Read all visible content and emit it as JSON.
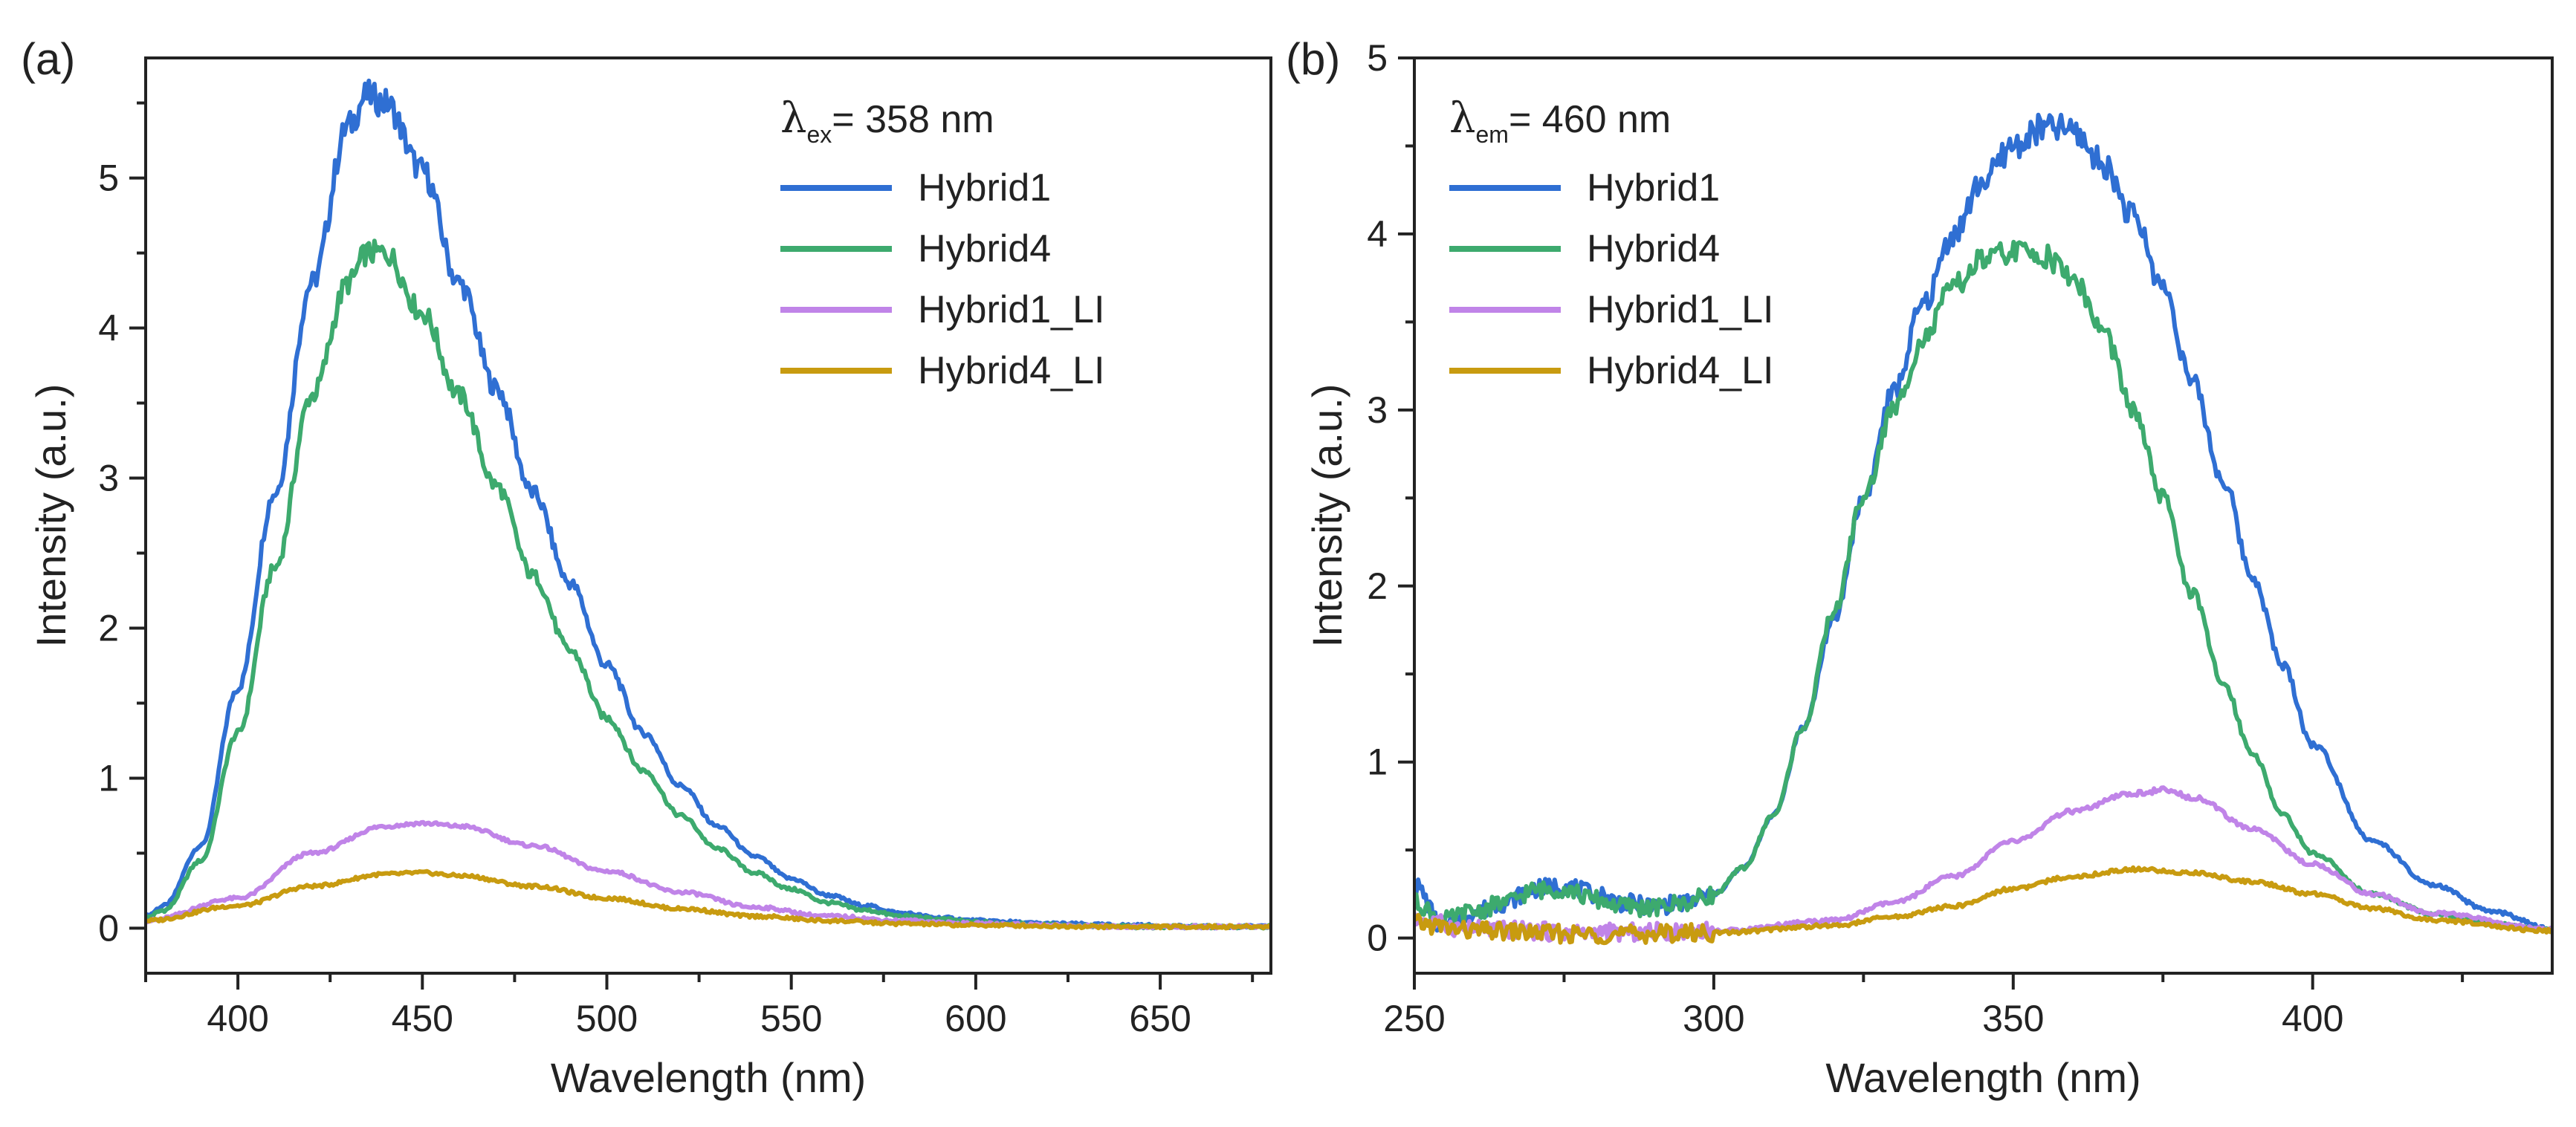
{
  "colors": {
    "Hybrid1": "#2f6fd3",
    "Hybrid4": "#3daa6e",
    "Hybrid1_LI": "#c084e8",
    "Hybrid4_LI": "#c89b10"
  },
  "chart_data": [
    {
      "type": "line",
      "panel_label": "(a)",
      "title": "",
      "xlabel": "Wavelength (nm)",
      "ylabel": "Intensity (a.u.)",
      "xlim": [
        375,
        680
      ],
      "ylim": [
        -0.3,
        5.8
      ],
      "xticks": [
        400,
        450,
        500,
        550,
        600,
        650
      ],
      "yticks": [
        0,
        1,
        2,
        3,
        4,
        5
      ],
      "annotation": {
        "symbol": "λ",
        "sub": "ex",
        "rest": "= 358 nm"
      },
      "legend_position": "top-right",
      "series": [
        {
          "name": "Hybrid1",
          "x": [
            375,
            380,
            390,
            400,
            410,
            420,
            430,
            435,
            440,
            450,
            460,
            470,
            480,
            490,
            500,
            510,
            520,
            530,
            540,
            550,
            560,
            570,
            580,
            590,
            600,
            620,
            640,
            660,
            680
          ],
          "y": [
            0.08,
            0.15,
            0.55,
            1.6,
            2.9,
            4.3,
            5.35,
            5.55,
            5.5,
            5.05,
            4.3,
            3.6,
            2.9,
            2.3,
            1.75,
            1.3,
            0.95,
            0.68,
            0.48,
            0.33,
            0.22,
            0.15,
            0.1,
            0.07,
            0.05,
            0.03,
            0.02,
            0.01,
            0.01
          ]
        },
        {
          "name": "Hybrid4",
          "x": [
            375,
            380,
            390,
            400,
            410,
            420,
            430,
            435,
            440,
            450,
            460,
            470,
            480,
            490,
            500,
            510,
            520,
            530,
            540,
            550,
            560,
            570,
            580,
            590,
            600,
            620,
            640,
            660,
            680
          ],
          "y": [
            0.07,
            0.12,
            0.45,
            1.3,
            2.4,
            3.55,
            4.3,
            4.5,
            4.5,
            4.1,
            3.55,
            2.95,
            2.35,
            1.85,
            1.4,
            1.05,
            0.75,
            0.53,
            0.37,
            0.26,
            0.17,
            0.12,
            0.08,
            0.06,
            0.04,
            0.02,
            0.01,
            0.01,
            0.01
          ]
        },
        {
          "name": "Hybrid1_LI",
          "x": [
            375,
            400,
            420,
            440,
            450,
            460,
            480,
            500,
            520,
            540,
            560,
            580,
            600,
            640,
            680
          ],
          "y": [
            0.05,
            0.2,
            0.5,
            0.68,
            0.7,
            0.68,
            0.55,
            0.38,
            0.24,
            0.14,
            0.08,
            0.05,
            0.03,
            0.01,
            0.01
          ]
        },
        {
          "name": "Hybrid4_LI",
          "x": [
            375,
            400,
            420,
            440,
            450,
            460,
            480,
            500,
            520,
            540,
            560,
            580,
            600,
            640,
            680
          ],
          "y": [
            0.05,
            0.15,
            0.28,
            0.36,
            0.37,
            0.35,
            0.28,
            0.2,
            0.13,
            0.08,
            0.05,
            0.03,
            0.02,
            0.01,
            0.01
          ]
        }
      ]
    },
    {
      "type": "line",
      "panel_label": "(b)",
      "title": "",
      "xlabel": "Wavelength (nm)",
      "ylabel": "Intensity (a.u.)",
      "xlim": [
        250,
        440
      ],
      "ylim": [
        -0.2,
        5
      ],
      "xticks": [
        250,
        300,
        350,
        400
      ],
      "yticks": [
        0,
        1,
        2,
        3,
        4,
        5
      ],
      "annotation": {
        "symbol": "λ",
        "sub": "em",
        "rest": "= 460 nm"
      },
      "legend_position": "top-left",
      "series": [
        {
          "name": "Hybrid1",
          "x": [
            250,
            255,
            260,
            265,
            270,
            275,
            280,
            285,
            290,
            295,
            300,
            305,
            310,
            315,
            320,
            325,
            330,
            335,
            340,
            345,
            350,
            355,
            358,
            360,
            365,
            370,
            375,
            380,
            385,
            390,
            395,
            400,
            410,
            420,
            430,
            440
          ],
          "y": [
            0.3,
            0.05,
            0.15,
            0.2,
            0.28,
            0.3,
            0.25,
            0.2,
            0.18,
            0.2,
            0.25,
            0.4,
            0.7,
            1.2,
            1.8,
            2.5,
            3.1,
            3.6,
            4.0,
            4.3,
            4.5,
            4.6,
            4.6,
            4.58,
            4.4,
            4.1,
            3.7,
            3.15,
            2.6,
            2.05,
            1.55,
            1.1,
            0.55,
            0.3,
            0.15,
            0.05
          ]
        },
        {
          "name": "Hybrid4",
          "x": [
            250,
            255,
            260,
            265,
            270,
            275,
            280,
            285,
            290,
            295,
            300,
            305,
            310,
            315,
            320,
            325,
            330,
            335,
            340,
            345,
            350,
            355,
            360,
            365,
            370,
            375,
            380,
            385,
            390,
            395,
            400,
            410,
            420,
            430,
            440
          ],
          "y": [
            0.2,
            0.1,
            0.15,
            0.2,
            0.27,
            0.28,
            0.22,
            0.18,
            0.17,
            0.2,
            0.25,
            0.4,
            0.7,
            1.2,
            1.85,
            2.5,
            3.0,
            3.4,
            3.7,
            3.85,
            3.9,
            3.88,
            3.75,
            3.45,
            3.0,
            2.5,
            1.95,
            1.45,
            1.05,
            0.7,
            0.48,
            0.25,
            0.14,
            0.08,
            0.05
          ]
        },
        {
          "name": "Hybrid1_LI",
          "x": [
            250,
            260,
            280,
            300,
            320,
            330,
            340,
            350,
            360,
            370,
            375,
            380,
            390,
            400,
            410,
            420,
            440
          ],
          "y": [
            0.1,
            0.05,
            0.03,
            0.04,
            0.1,
            0.2,
            0.35,
            0.55,
            0.72,
            0.82,
            0.84,
            0.8,
            0.62,
            0.42,
            0.25,
            0.14,
            0.05
          ]
        },
        {
          "name": "Hybrid4_LI",
          "x": [
            250,
            260,
            280,
            300,
            320,
            330,
            340,
            350,
            360,
            370,
            380,
            390,
            400,
            410,
            420,
            440
          ],
          "y": [
            0.08,
            0.04,
            0.02,
            0.03,
            0.07,
            0.12,
            0.18,
            0.28,
            0.35,
            0.39,
            0.37,
            0.32,
            0.25,
            0.17,
            0.1,
            0.04
          ]
        }
      ]
    }
  ]
}
